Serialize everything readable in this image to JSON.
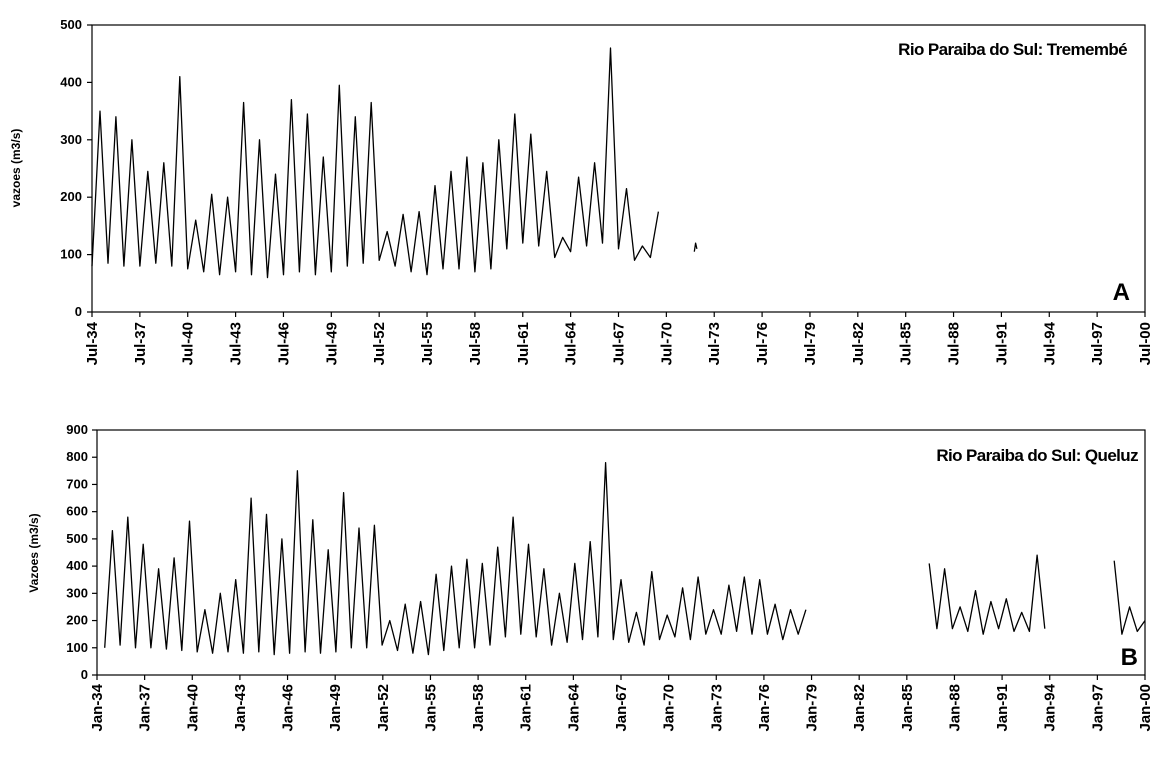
{
  "chart_data": [
    {
      "type": "line",
      "panel_label": "A",
      "title": "Rio Paraiba do Sul: Tremembé",
      "xlabel": "",
      "ylabel": "vazoes (m3/s)",
      "ylim": [
        0,
        500
      ],
      "yticks": [
        0,
        100,
        200,
        300,
        400,
        500
      ],
      "xlim": [
        "1934-07",
        "2000-07"
      ],
      "xtick_labels": [
        "Jul-34",
        "Jul-37",
        "Jul-40",
        "Jul-43",
        "Jul-46",
        "Jul-49",
        "Jul-52",
        "Jul-55",
        "Jul-58",
        "Jul-61",
        "Jul-64",
        "Jul-67",
        "Jul-70",
        "Jul-73",
        "Jul-76",
        "Jul-79",
        "Jul-82",
        "Jul-85",
        "Jul-88",
        "Jul-91",
        "Jul-94",
        "Jul-97",
        "Jul-00"
      ],
      "grid": false,
      "legend": "none",
      "line_color": "#000000",
      "series": [
        {
          "x": [
            "1934-07",
            "1935-01",
            "1935-07",
            "1936-01",
            "1936-07",
            "1937-01",
            "1937-07",
            "1938-01",
            "1938-07",
            "1939-01",
            "1939-07",
            "1940-01",
            "1940-07",
            "1941-01",
            "1941-07",
            "1942-01",
            "1942-07",
            "1943-01",
            "1943-07",
            "1944-01",
            "1944-07",
            "1945-01",
            "1945-07",
            "1946-01",
            "1946-07",
            "1947-01",
            "1947-07",
            "1948-01",
            "1948-07",
            "1949-01",
            "1949-07",
            "1950-01",
            "1950-07",
            "1951-01",
            "1951-07",
            "1952-01",
            "1952-07",
            "1953-01",
            "1953-07",
            "1954-01",
            "1954-07",
            "1955-01",
            "1955-07",
            "1956-01",
            "1956-07",
            "1957-01",
            "1957-07",
            "1958-01",
            "1958-07",
            "1959-01",
            "1959-07",
            "1960-01",
            "1960-07",
            "1961-01",
            "1961-07",
            "1962-01",
            "1962-07",
            "1963-01",
            "1963-07",
            "1964-01",
            "1964-07",
            "1965-01",
            "1965-07",
            "1966-01",
            "1966-07",
            "1967-01",
            "1967-07",
            "1968-01",
            "1968-07",
            "1969-01",
            "1969-07",
            "1970-01",
            "1970-07"
          ],
          "y": [
            80,
            350,
            85,
            340,
            80,
            300,
            80,
            245,
            85,
            260,
            80,
            410,
            75,
            160,
            70,
            205,
            65,
            200,
            70,
            365,
            65,
            300,
            60,
            240,
            65,
            370,
            70,
            345,
            65,
            270,
            70,
            395,
            80,
            340,
            85,
            365,
            90,
            140,
            80,
            170,
            70,
            175,
            65,
            220,
            75,
            245,
            75,
            270,
            70,
            260,
            75,
            300,
            110,
            345,
            120,
            310,
            115,
            245,
            95,
            130,
            105,
            235,
            115,
            260,
            120,
            460,
            110,
            215,
            90,
            115,
            95,
            175,
            null
          ]
        },
        {
          "x": [
            "1972-04",
            "1972-05",
            "1972-06"
          ],
          "y": [
            105,
            120,
            110
          ]
        }
      ]
    },
    {
      "type": "line",
      "panel_label": "B",
      "title": "Rio Paraiba do Sul: Queluz",
      "xlabel": "",
      "ylabel": "Vazoes (m3/s)",
      "ylim": [
        0,
        900
      ],
      "yticks": [
        0,
        100,
        200,
        300,
        400,
        500,
        600,
        700,
        800,
        900
      ],
      "xlim": [
        "1934-01",
        "2002-01"
      ],
      "xtick_labels": [
        "Jan-34",
        "Jan-37",
        "Jan-40",
        "Jan-43",
        "Jan-46",
        "Jan-49",
        "Jan-52",
        "Jan-55",
        "Jan-58",
        "Jan-61",
        "Jan-64",
        "Jan-67",
        "Jan-70",
        "Jan-73",
        "Jan-76",
        "Jan-79",
        "Jan-82",
        "Jan-85",
        "Jan-88",
        "Jan-91",
        "Jan-94",
        "Jan-97",
        "Jan-00"
      ],
      "grid": false,
      "legend": "none",
      "line_color": "#000000",
      "series": [
        {
          "x": [
            "1934-07",
            "1935-01",
            "1935-07",
            "1936-01",
            "1936-07",
            "1937-01",
            "1937-07",
            "1938-01",
            "1938-07",
            "1939-01",
            "1939-07",
            "1940-01",
            "1940-07",
            "1941-01",
            "1941-07",
            "1942-01",
            "1942-07",
            "1943-01",
            "1943-07",
            "1944-01",
            "1944-07",
            "1945-01",
            "1945-07",
            "1946-01",
            "1946-07",
            "1947-01",
            "1947-07",
            "1948-01",
            "1948-07",
            "1949-01",
            "1949-07",
            "1950-01",
            "1950-07",
            "1951-01",
            "1951-07",
            "1952-01",
            "1952-07",
            "1953-01",
            "1953-07",
            "1954-01",
            "1954-07",
            "1955-01",
            "1955-07",
            "1956-01",
            "1956-07",
            "1957-01",
            "1957-07",
            "1958-01",
            "1958-07",
            "1959-01",
            "1959-07",
            "1960-01",
            "1960-07",
            "1961-01",
            "1961-07",
            "1962-01",
            "1962-07",
            "1963-01",
            "1963-07",
            "1964-01",
            "1964-07",
            "1965-01",
            "1965-07",
            "1966-01",
            "1966-07",
            "1967-01",
            "1967-07",
            "1968-01",
            "1968-07",
            "1969-01",
            "1969-07",
            "1970-01",
            "1970-07",
            "1971-01",
            "1971-07",
            "1972-01",
            "1972-07",
            "1973-01",
            "1973-07",
            "1974-01",
            "1974-07",
            "1975-01",
            "1975-07",
            "1976-01",
            "1976-07",
            "1977-01",
            "1977-07",
            "1978-01",
            "1978-07",
            "1979-01",
            "1979-07",
            "1980-01",
            "1980-07"
          ],
          "y": [
            100,
            530,
            110,
            580,
            100,
            480,
            100,
            390,
            95,
            430,
            90,
            565,
            85,
            240,
            80,
            300,
            85,
            350,
            80,
            650,
            85,
            590,
            75,
            500,
            80,
            750,
            85,
            570,
            80,
            460,
            85,
            670,
            100,
            540,
            100,
            550,
            110,
            200,
            90,
            260,
            80,
            270,
            75,
            370,
            90,
            400,
            100,
            425,
            100,
            410,
            110,
            470,
            140,
            580,
            150,
            480,
            140,
            390,
            110,
            300,
            120,
            410,
            130,
            490,
            140,
            780,
            130,
            350,
            120,
            230,
            110,
            380,
            130,
            220,
            140,
            320,
            130,
            360,
            150,
            240,
            150,
            330,
            160,
            360,
            150,
            350,
            150,
            260,
            130,
            240,
            150,
            240,
            null
          ]
        },
        {
          "x": [
            "1988-01",
            "1988-07",
            "1989-01",
            "1989-07",
            "1990-01",
            "1990-07",
            "1991-01",
            "1991-07",
            "1992-01",
            "1992-07",
            "1993-01",
            "1993-07",
            "1994-01",
            "1994-07",
            "1995-01",
            "1995-07"
          ],
          "y": [
            410,
            170,
            390,
            170,
            250,
            160,
            310,
            150,
            270,
            170,
            280,
            160,
            230,
            160,
            440,
            170
          ]
        },
        {
          "x": [
            "2000-01",
            "2000-07",
            "2001-01",
            "2001-07",
            "2002-01"
          ],
          "y": [
            420,
            150,
            250,
            160,
            200
          ]
        }
      ]
    }
  ]
}
